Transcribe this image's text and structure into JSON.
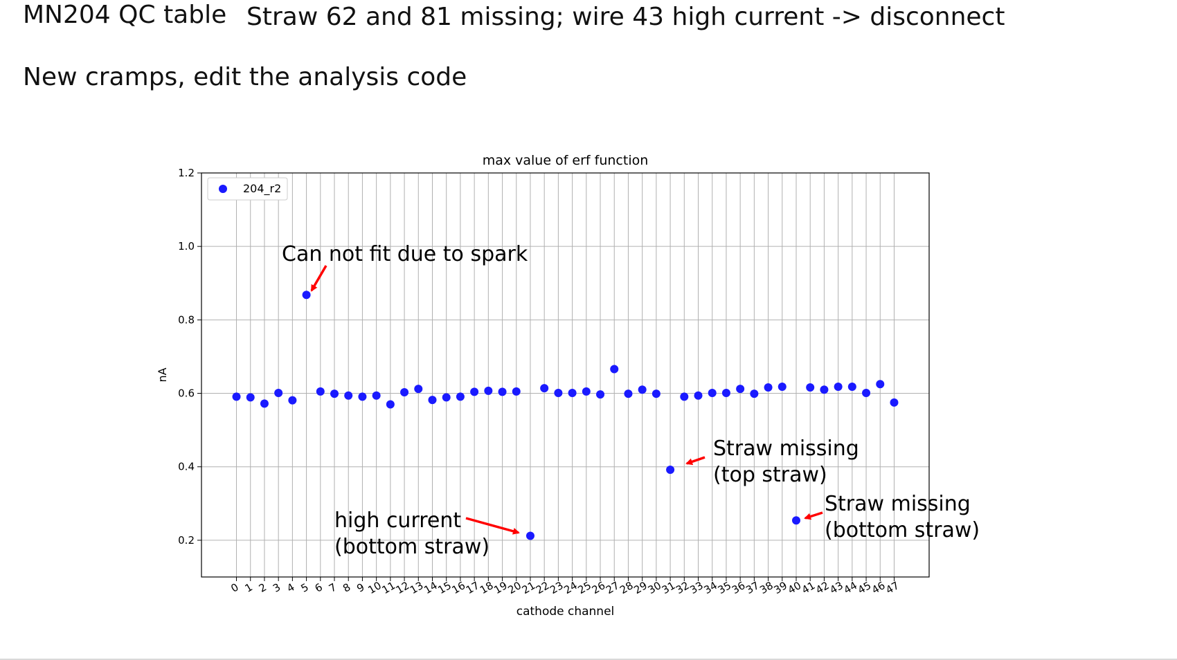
{
  "slide": {
    "title": "MN204 QC table",
    "subtitle": "Straw 62 and 81 missing; wire 43 high current -> disconnect",
    "note": "New cramps, edit the analysis code"
  },
  "chart_data": {
    "type": "scatter",
    "title": "max value of erf function",
    "xlabel": "cathode channel",
    "ylabel": "nA",
    "xlim": [
      -2.5,
      49.5
    ],
    "ylim": [
      0.1,
      1.2
    ],
    "yticks": [
      "0.2",
      "0.4",
      "0.6",
      "0.8",
      "1.0",
      "1.2"
    ],
    "xticks": [
      "0",
      "1",
      "2",
      "3",
      "4",
      "5",
      "6",
      "7",
      "8",
      "9",
      "10",
      "11",
      "12",
      "13",
      "14",
      "15",
      "16",
      "17",
      "18",
      "19",
      "20",
      "21",
      "22",
      "23",
      "24",
      "25",
      "26",
      "27",
      "28",
      "29",
      "30",
      "31",
      "32",
      "33",
      "34",
      "35",
      "36",
      "37",
      "38",
      "39",
      "40",
      "41",
      "42",
      "43",
      "44",
      "45",
      "46",
      "47"
    ],
    "grid": true,
    "legend_position": "top-left",
    "series": [
      {
        "name": "204_r2",
        "color": "#1a1aff",
        "points": [
          [
            0,
            0.591
          ],
          [
            1,
            0.589
          ],
          [
            2,
            0.572
          ],
          [
            3,
            0.601
          ],
          [
            4,
            0.581
          ],
          [
            5,
            0.868
          ],
          [
            6,
            0.605
          ],
          [
            7,
            0.599
          ],
          [
            8,
            0.594
          ],
          [
            9,
            0.591
          ],
          [
            10,
            0.594
          ],
          [
            11,
            0.57
          ],
          [
            12,
            0.603
          ],
          [
            13,
            0.612
          ],
          [
            14,
            0.582
          ],
          [
            15,
            0.589
          ],
          [
            16,
            0.591
          ],
          [
            17,
            0.604
          ],
          [
            18,
            0.607
          ],
          [
            19,
            0.604
          ],
          [
            20,
            0.605
          ],
          [
            21,
            0.212
          ],
          [
            22,
            0.614
          ],
          [
            23,
            0.601
          ],
          [
            24,
            0.601
          ],
          [
            25,
            0.605
          ],
          [
            26,
            0.597
          ],
          [
            27,
            0.666
          ],
          [
            28,
            0.599
          ],
          [
            29,
            0.61
          ],
          [
            30,
            0.599
          ],
          [
            31,
            0.392
          ],
          [
            32,
            0.591
          ],
          [
            33,
            0.594
          ],
          [
            34,
            0.601
          ],
          [
            35,
            0.601
          ],
          [
            36,
            0.612
          ],
          [
            37,
            0.599
          ],
          [
            38,
            0.616
          ],
          [
            39,
            0.618
          ],
          [
            40,
            0.254
          ],
          [
            41,
            0.616
          ],
          [
            42,
            0.61
          ],
          [
            43,
            0.618
          ],
          [
            44,
            0.618
          ],
          [
            45,
            0.601
          ],
          [
            46,
            0.625
          ],
          [
            47,
            0.575
          ]
        ]
      }
    ],
    "annotations": [
      {
        "id": "spark",
        "lines": [
          "Can not fit due to spark"
        ],
        "target": [
          5,
          0.868
        ]
      },
      {
        "id": "high-current",
        "lines": [
          "high current",
          "(bottom straw)"
        ],
        "target": [
          21,
          0.212
        ]
      },
      {
        "id": "straw-missing-top",
        "lines": [
          "Straw missing",
          "(top straw)"
        ],
        "target": [
          31,
          0.392
        ]
      },
      {
        "id": "straw-missing-bottom",
        "lines": [
          "Straw missing",
          "(bottom straw)"
        ],
        "target": [
          40,
          0.254
        ]
      }
    ],
    "arrow_color": "#ff0000"
  }
}
